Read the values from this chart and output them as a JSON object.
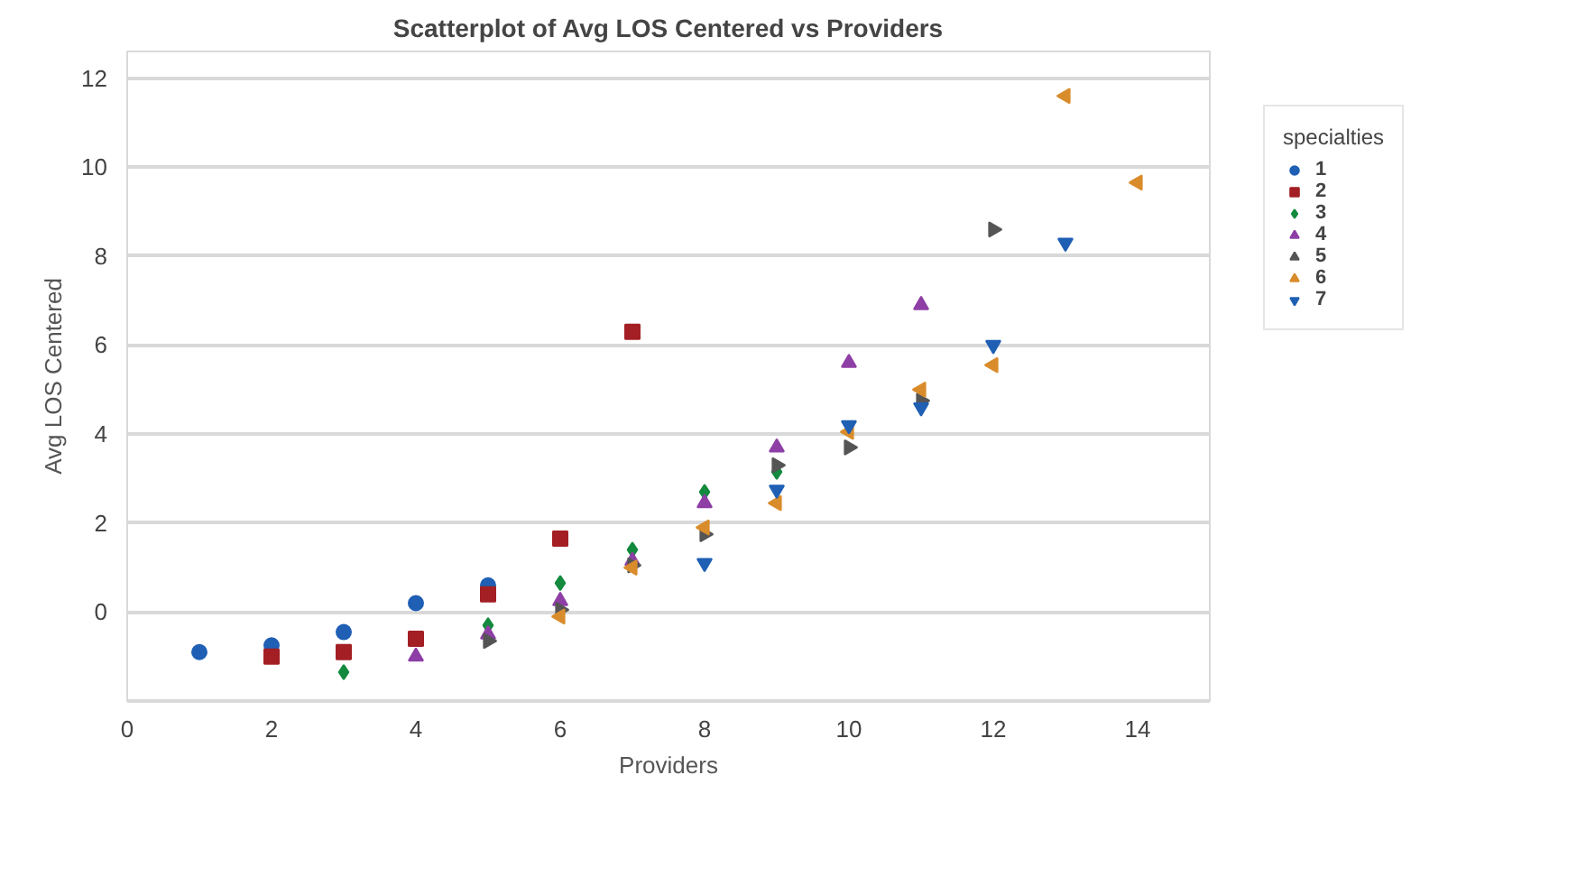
{
  "chart_data": {
    "type": "scatter",
    "title": "Scatterplot of Avg LOS Centered vs Providers",
    "xlabel": "Providers",
    "ylabel": "Avg LOS Centered",
    "legend_title": "specialties",
    "xlim": [
      0,
      15
    ],
    "xticks": [
      0,
      2,
      4,
      6,
      8,
      10,
      12,
      14
    ],
    "ylim": [
      -2,
      12.6
    ],
    "yticks": [
      {
        "value": -2,
        "label": null
      },
      0,
      2,
      4,
      6,
      8,
      10,
      12
    ],
    "grid": "y",
    "legend": "right",
    "series": [
      {
        "name": "1",
        "color": "#1f5fb4",
        "marker": "circle",
        "x": [
          1,
          2,
          3,
          4,
          5
        ],
        "values": [
          -0.9,
          -0.75,
          -0.45,
          0.2,
          0.6
        ]
      },
      {
        "name": "2",
        "color": "#a31f24",
        "marker": "square",
        "x": [
          2,
          3,
          4,
          5,
          6,
          7
        ],
        "values": [
          -1.0,
          -0.9,
          -0.6,
          0.4,
          1.65,
          6.3
        ]
      },
      {
        "name": "3",
        "color": "#138a3e",
        "marker": "diamond",
        "x": [
          3,
          5,
          6,
          7,
          8,
          9
        ],
        "values": [
          -1.35,
          -0.3,
          0.65,
          1.4,
          2.7,
          3.15
        ]
      },
      {
        "name": "4",
        "color": "#8e3fa6",
        "marker": "triangle",
        "x": [
          4,
          5,
          6,
          7,
          8,
          9,
          10,
          11
        ],
        "values": [
          -1.0,
          -0.5,
          0.25,
          1.15,
          2.45,
          3.7,
          5.6,
          6.9
        ]
      },
      {
        "name": "5",
        "color": "#555555",
        "marker": "triangle_right",
        "x": [
          5,
          6,
          7,
          8,
          9,
          10,
          11,
          12
        ],
        "values": [
          -0.65,
          0.05,
          1.05,
          1.75,
          3.3,
          3.7,
          4.75,
          8.6
        ]
      },
      {
        "name": "6",
        "color": "#d98c2b",
        "marker": "triangle_left",
        "x": [
          6,
          7,
          8,
          9,
          10,
          11,
          12,
          13,
          14
        ],
        "values": [
          -0.1,
          1.0,
          1.9,
          2.45,
          4.05,
          5.0,
          5.55,
          11.6,
          9.65
        ]
      },
      {
        "name": "7",
        "color": "#1f5fb4",
        "marker": "triangle_down",
        "x": [
          8,
          9,
          10,
          11,
          12,
          13
        ],
        "values": [
          1.1,
          2.75,
          4.2,
          4.6,
          6.0,
          8.3
        ]
      }
    ]
  }
}
